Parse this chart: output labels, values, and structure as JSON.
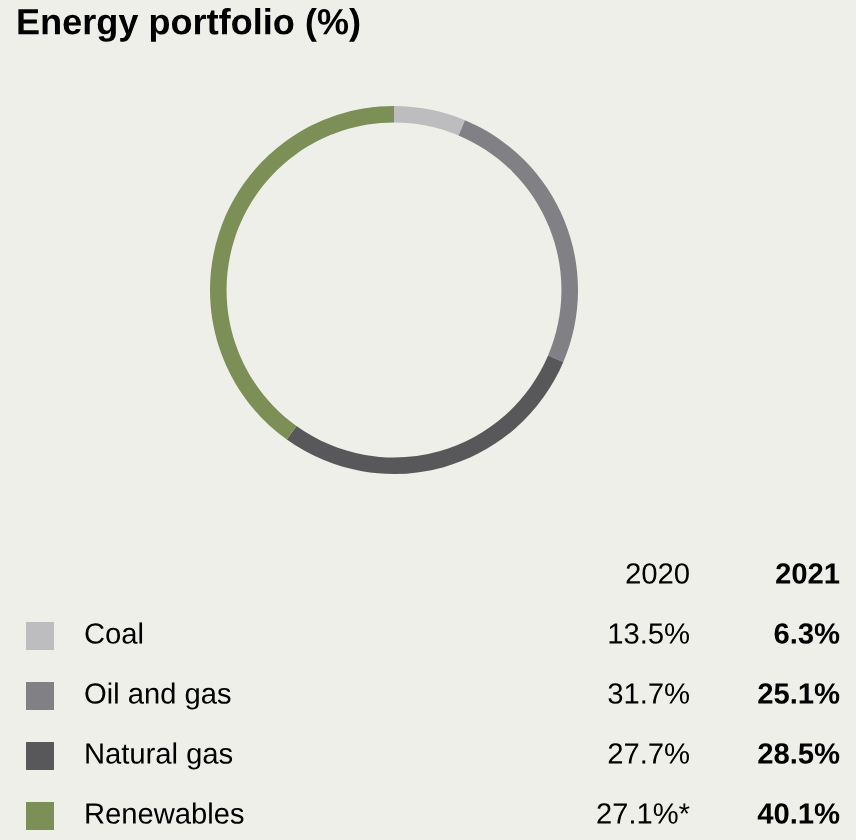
{
  "chart_data": {
    "type": "donut",
    "title": "Energy portfolio (%)",
    "categories": [
      "Coal",
      "Oil and gas",
      "Natural gas",
      "Renewables"
    ],
    "values": [
      6.3,
      25.1,
      28.5,
      40.1
    ],
    "value_labels": [
      "6.3%",
      "25.1%",
      "28.5%",
      "40.1%"
    ],
    "colors": [
      "#bdbdbf",
      "#818085",
      "#58585b",
      "#7b8f56"
    ],
    "legend": "bottom",
    "annotations": [
      "2020",
      "2021",
      "13.5%",
      "31.7%",
      "27.7%",
      "27.1%*"
    ]
  }
}
